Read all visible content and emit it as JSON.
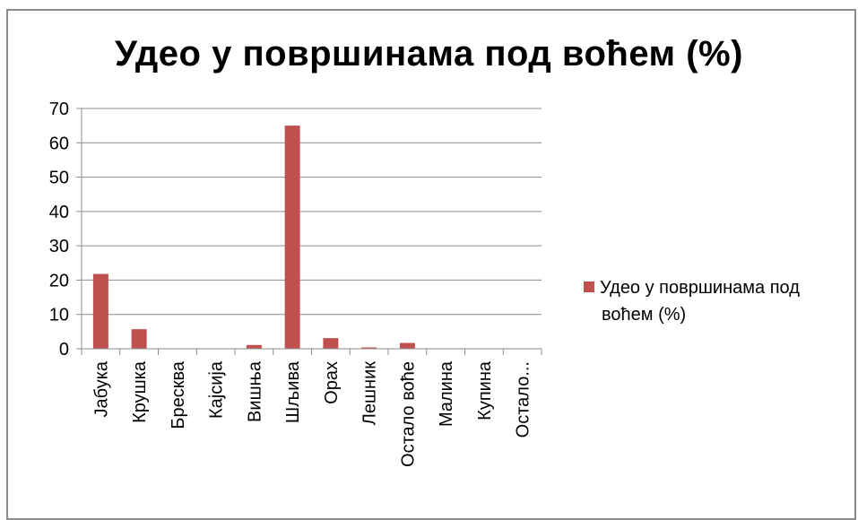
{
  "chart_data": {
    "type": "bar",
    "title": "Удео у површинама под воћем (%)",
    "categories": [
      "Јабука",
      "Крушка",
      "Бресква",
      "Кајсија",
      "Вишња",
      "Шљива",
      "Орах",
      "Лешник",
      "Остало воће",
      "Малина",
      "Купина",
      "Остало..."
    ],
    "series": [
      {
        "name": "Удео у површинама под воћем (%)",
        "values": [
          21.8,
          5.7,
          0,
          0,
          1.1,
          65,
          3.1,
          0.4,
          1.7,
          0,
          0,
          0
        ],
        "color": "#c0504d"
      }
    ],
    "ylim": [
      0,
      70
    ],
    "yticks": [
      0,
      10,
      20,
      30,
      40,
      50,
      60,
      70
    ],
    "grid": true,
    "legend_position": "right"
  },
  "legend": {
    "label_line1": "Удео у површинама под",
    "label_line2": "воћем (%)"
  }
}
